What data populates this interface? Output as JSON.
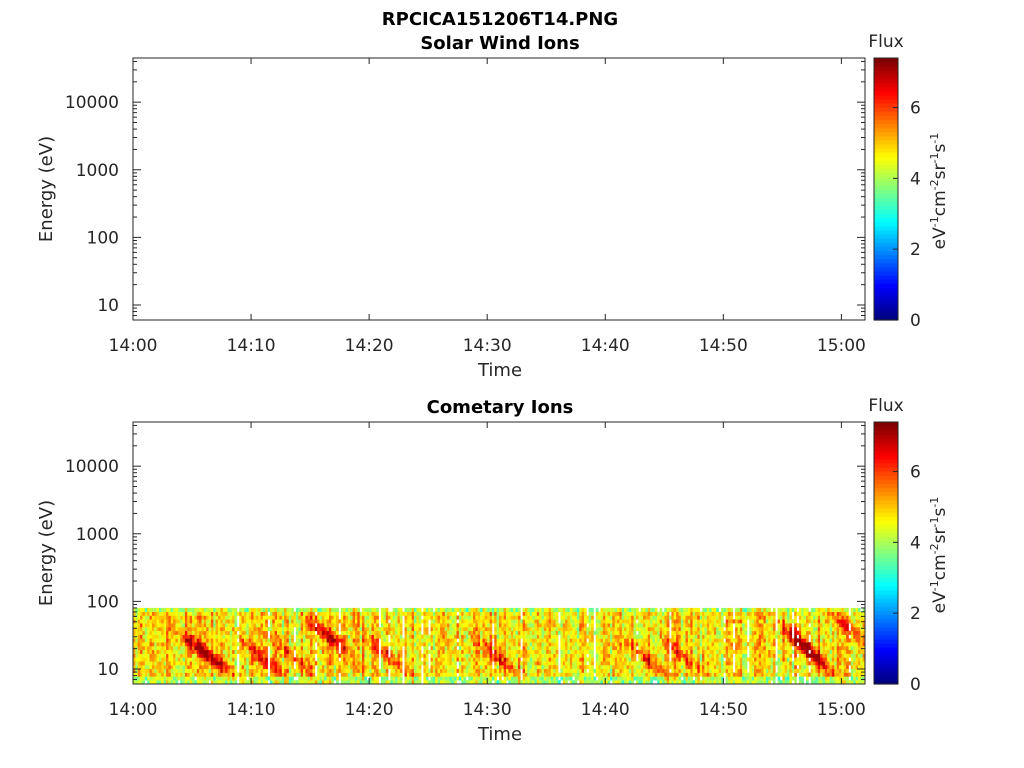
{
  "figure_title": "RPCICA151206T14.PNG",
  "chart_data": [
    {
      "type": "heatmap",
      "title": "Solar Wind Ions",
      "xlabel": "Time",
      "ylabel": "Energy (eV)",
      "x_range": [
        "14:00",
        "15:02"
      ],
      "x_ticks": [
        "14:00",
        "14:10",
        "14:20",
        "14:30",
        "14:40",
        "14:50",
        "15:00"
      ],
      "y_scale": "log",
      "y_range": [
        6,
        45000
      ],
      "y_ticks": [
        "10",
        "100",
        "1000",
        "10000"
      ],
      "colorbar": {
        "label": "Flux",
        "unit_label": "eV-1cm-2sr-1s-1",
        "range": [
          0,
          7.4
        ],
        "ticks": [
          "0",
          "2",
          "4",
          "6"
        ]
      },
      "colormap": "jet",
      "data_present": false,
      "bands": []
    },
    {
      "type": "heatmap",
      "title": "Cometary Ions",
      "xlabel": "Time",
      "ylabel": "Energy (eV)",
      "x_range": [
        "14:00",
        "15:02"
      ],
      "x_ticks": [
        "14:00",
        "14:10",
        "14:20",
        "14:30",
        "14:40",
        "14:50",
        "15:00"
      ],
      "y_scale": "log",
      "y_range": [
        6,
        45000
      ],
      "y_ticks": [
        "10",
        "100",
        "1000",
        "10000"
      ],
      "colorbar": {
        "label": "Flux",
        "unit_label": "eV-1cm-2sr-1s-1",
        "range": [
          0,
          7.4
        ],
        "ticks": [
          "0",
          "2",
          "4",
          "6"
        ]
      },
      "colormap": "jet",
      "data_present": true,
      "energy_band_eV": [
        6,
        80
      ],
      "typical_flux": 4.8,
      "flux_peaks": [
        {
          "time": "14:05:30",
          "energy_eV": 20,
          "flux": 6.8
        },
        {
          "time": "14:07:00",
          "energy_eV": 13,
          "flux": 6.2
        },
        {
          "time": "14:11:00",
          "energy_eV": 14,
          "flux": 6.3
        },
        {
          "time": "14:13:30",
          "energy_eV": 15,
          "flux": 6.0
        },
        {
          "time": "14:16:30",
          "energy_eV": 30,
          "flux": 7.1
        },
        {
          "time": "14:21:30",
          "energy_eV": 16,
          "flux": 6.4
        },
        {
          "time": "14:31:00",
          "energy_eV": 14,
          "flux": 6.3
        },
        {
          "time": "14:43:30",
          "energy_eV": 14,
          "flux": 6.4
        },
        {
          "time": "14:46:30",
          "energy_eV": 16,
          "flux": 6.0
        },
        {
          "time": "14:56:30",
          "energy_eV": 25,
          "flux": 7.2
        },
        {
          "time": "14:57:30",
          "energy_eV": 15,
          "flux": 6.4
        },
        {
          "time": "15:00:30",
          "energy_eV": 40,
          "flux": 6.0
        }
      ]
    }
  ]
}
